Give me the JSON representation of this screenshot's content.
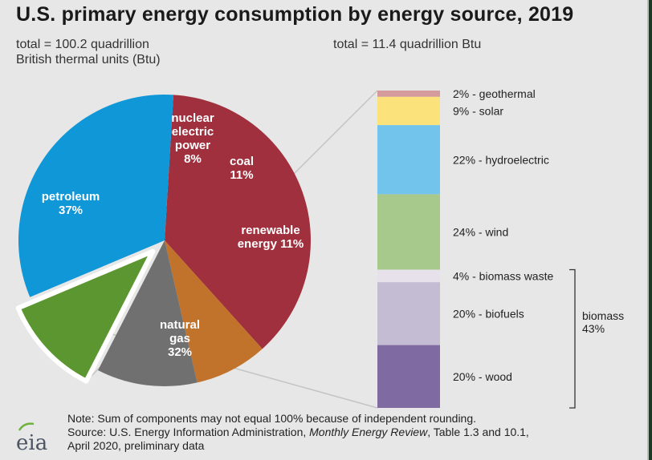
{
  "title": "U.S. primary energy consumption by energy source, 2019",
  "left_total": {
    "line1": "total = 100.2 quadrillion",
    "line2": "British thermal units (Btu)"
  },
  "right_total": "total = 11.4 quadrillion Btu",
  "chart_data": [
    {
      "type": "pie",
      "total": 100.2,
      "unit": "quadrillion Btu",
      "slices": [
        {
          "label": "petroleum",
          "value": 37,
          "label_lines": [
            "petroleum",
            "37%"
          ],
          "color": "#a0303d"
        },
        {
          "label": "nuclear electric power",
          "value": 8,
          "label_lines": [
            "nuclear",
            "electric",
            "power",
            "8%"
          ],
          "color": "#c1722b"
        },
        {
          "label": "coal",
          "value": 11,
          "label_lines": [
            "coal",
            "11%"
          ],
          "color": "#707070"
        },
        {
          "label": "renewable energy",
          "value": 11,
          "label_lines": [
            "renewable",
            "energy 11%"
          ],
          "color": "#5b9630",
          "exploded": true
        },
        {
          "label": "natural gas",
          "value": 32,
          "label_lines": [
            "natural",
            "gas",
            "32%"
          ],
          "color": "#0f97d8"
        }
      ]
    },
    {
      "type": "bar",
      "stacked": true,
      "total": 11.4,
      "unit": "quadrillion Btu",
      "segments": [
        {
          "name": "geothermal",
          "value": 2,
          "label": "2% - geothermal",
          "color": "#d49a9c"
        },
        {
          "name": "solar",
          "value": 9,
          "label": "9% - solar",
          "color": "#fbe27b"
        },
        {
          "name": "hydroelectric",
          "value": 22,
          "label": "22% - hydroelectric",
          "color": "#72c4ec"
        },
        {
          "name": "wind",
          "value": 24,
          "label": "24% - wind",
          "color": "#a8c98c"
        },
        {
          "name": "biomass waste",
          "value": 4,
          "label": "4% - biomass waste",
          "color": "#e6e1ea"
        },
        {
          "name": "biofuels",
          "value": 20,
          "label": "20% - biofuels",
          "color": "#c3bcd3"
        },
        {
          "name": "wood",
          "value": 20,
          "label": "20% - wood",
          "color": "#7f6ba1"
        }
      ],
      "group": {
        "line1": "biomass",
        "line2": "43%"
      }
    }
  ],
  "footer": {
    "note": "Note: Sum of components may not equal 100% because of independent rounding.",
    "source_pre": "Source: U.S. Energy Information Administration, ",
    "source_italic": "Monthly Energy Review",
    "source_post": ", Table 1.3 and 10.1,",
    "source_line2": "April 2020, preliminary data"
  },
  "logo_text": "eia"
}
